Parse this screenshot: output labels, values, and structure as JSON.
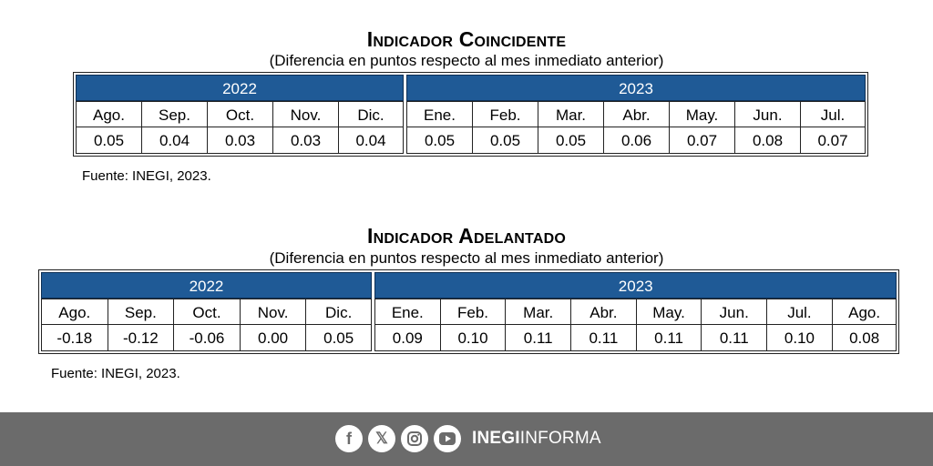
{
  "coincidente": {
    "title": "Indicador Coincidente",
    "subtitle": "(Diferencia en puntos respecto al mes inmediato anterior)",
    "year1": "2022",
    "year2": "2023",
    "months1": [
      "Ago.",
      "Sep.",
      "Oct.",
      "Nov.",
      "Dic."
    ],
    "values1": [
      "0.05",
      "0.04",
      "0.03",
      "0.03",
      "0.04"
    ],
    "months2": [
      "Ene.",
      "Feb.",
      "Mar.",
      "Abr.",
      "May.",
      "Jun.",
      "Jul."
    ],
    "values2": [
      "0.05",
      "0.05",
      "0.05",
      "0.06",
      "0.07",
      "0.08",
      "0.07"
    ],
    "source": "Fuente: INEGI, 2023."
  },
  "adelantado": {
    "title": "Indicador Adelantado",
    "subtitle": "(Diferencia en puntos respecto al mes inmediato anterior)",
    "year1": "2022",
    "year2": "2023",
    "months1": [
      "Ago.",
      "Sep.",
      "Oct.",
      "Nov.",
      "Dic."
    ],
    "values1": [
      "-0.18",
      "-0.12",
      "-0.06",
      "0.00",
      "0.05"
    ],
    "months2": [
      "Ene.",
      "Feb.",
      "Mar.",
      "Abr.",
      "May.",
      "Jun.",
      "Jul.",
      "Ago."
    ],
    "values2": [
      "0.09",
      "0.10",
      "0.11",
      "0.11",
      "0.11",
      "0.11",
      "0.10",
      "0.08"
    ],
    "source": "Fuente: INEGI, 2023."
  },
  "footer": {
    "icons": [
      "facebook-icon",
      "x-icon",
      "instagram-icon",
      "youtube-icon"
    ],
    "brand_bold": "INEGI",
    "brand_light": "INFORMA",
    "background": "#6b6b6b"
  },
  "colors": {
    "header": "#1f5a96"
  }
}
